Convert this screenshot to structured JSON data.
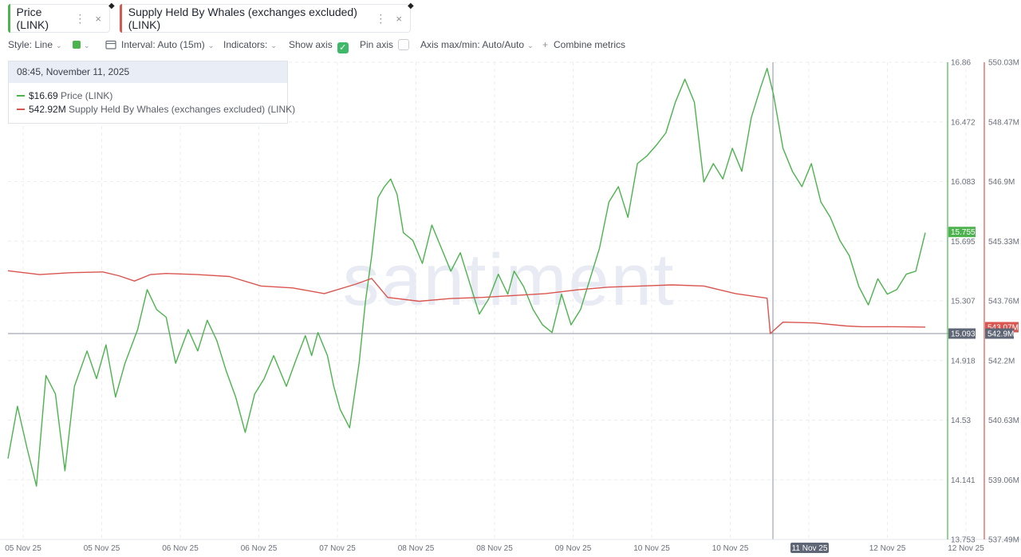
{
  "tabs": [
    {
      "label": "Price (LINK)",
      "color": "#4db34e"
    },
    {
      "label": "Supply Held By Whales (exchanges excluded) (LINK)",
      "color": "#d9554f"
    }
  ],
  "tab_menu_glyph": "⋮",
  "tab_close_glyph": "×",
  "toolbar": {
    "style": "Style: Line",
    "interval": "Interval: Auto (15m)",
    "indicators": "Indicators:",
    "show_axis": "Show axis",
    "pin_axis": "Pin axis",
    "axis_maxmin": "Axis max/min: Auto/Auto",
    "combine": "Combine metrics",
    "chevron": "⌄",
    "plus": "+",
    "check": "✓"
  },
  "tooltip": {
    "time": "08:45, November 11, 2025",
    "rows": [
      {
        "value": "$16.69",
        "label": "Price (LINK)",
        "color": "#4db34e"
      },
      {
        "value": "542.92M",
        "label": "Supply Held By Whales (exchanges excluded) (LINK)",
        "color": "#d9554f"
      }
    ]
  },
  "watermark": "santiment",
  "chart_data": {
    "type": "line",
    "x_ticks": [
      "05 Nov 25",
      "05 Nov 25",
      "06 Nov 25",
      "06 Nov 25",
      "07 Nov 25",
      "08 Nov 25",
      "08 Nov 25",
      "09 Nov 25",
      "10 Nov 25",
      "10 Nov 25",
      "11 Nov 25",
      "12 Nov 25",
      "12 Nov 25"
    ],
    "crosshair_x_label": "11 Nov 25",
    "y_axes": {
      "price": {
        "ylim": [
          13.753,
          16.86
        ],
        "ticks": [
          "16.86",
          "16.472",
          "16.083",
          "15.695",
          "15.307",
          "14.918",
          "14.53",
          "14.141",
          "13.753"
        ]
      },
      "supply": {
        "ylim": [
          537.49,
          550.03
        ],
        "ticks": [
          "550.03M",
          "548.47M",
          "546.9M",
          "545.33M",
          "543.76M",
          "542.2M",
          "540.63M",
          "539.06M",
          "537.49M"
        ]
      }
    },
    "badges": {
      "price_last": "15.755",
      "crosshair_price": "15.093",
      "supply_last": "543.07M",
      "supply_cross": "542.9M"
    },
    "series": [
      {
        "name": "Price (LINK)",
        "axis": "price",
        "color": "#4db34e",
        "points": [
          [
            0,
            14.28
          ],
          [
            0.3,
            14.62
          ],
          [
            0.6,
            14.35
          ],
          [
            0.9,
            14.1
          ],
          [
            1.2,
            14.82
          ],
          [
            1.5,
            14.7
          ],
          [
            1.8,
            14.2
          ],
          [
            2.1,
            14.75
          ],
          [
            2.5,
            14.98
          ],
          [
            2.8,
            14.8
          ],
          [
            3.1,
            15.02
          ],
          [
            3.4,
            14.68
          ],
          [
            3.7,
            14.9
          ],
          [
            4.1,
            15.12
          ],
          [
            4.4,
            15.38
          ],
          [
            4.7,
            15.25
          ],
          [
            5.0,
            15.2
          ],
          [
            5.3,
            14.9
          ],
          [
            5.7,
            15.12
          ],
          [
            6.0,
            14.98
          ],
          [
            6.3,
            15.18
          ],
          [
            6.6,
            15.05
          ],
          [
            6.9,
            14.85
          ],
          [
            7.2,
            14.68
          ],
          [
            7.5,
            14.45
          ],
          [
            7.8,
            14.7
          ],
          [
            8.1,
            14.8
          ],
          [
            8.4,
            14.95
          ],
          [
            8.8,
            14.75
          ],
          [
            9.1,
            14.92
          ],
          [
            9.4,
            15.08
          ],
          [
            9.6,
            14.95
          ],
          [
            9.8,
            15.1
          ],
          [
            10.1,
            14.95
          ],
          [
            10.3,
            14.75
          ],
          [
            10.5,
            14.6
          ],
          [
            10.8,
            14.48
          ],
          [
            11.1,
            14.9
          ],
          [
            11.3,
            15.3
          ],
          [
            11.5,
            15.6
          ],
          [
            11.7,
            15.98
          ],
          [
            11.9,
            16.05
          ],
          [
            12.1,
            16.1
          ],
          [
            12.3,
            16.0
          ],
          [
            12.5,
            15.75
          ],
          [
            12.8,
            15.7
          ],
          [
            13.1,
            15.55
          ],
          [
            13.4,
            15.8
          ],
          [
            13.7,
            15.65
          ],
          [
            14.0,
            15.5
          ],
          [
            14.3,
            15.62
          ],
          [
            14.6,
            15.42
          ],
          [
            14.9,
            15.22
          ],
          [
            15.2,
            15.32
          ],
          [
            15.5,
            15.48
          ],
          [
            15.8,
            15.35
          ],
          [
            16.0,
            15.5
          ],
          [
            16.3,
            15.4
          ],
          [
            16.6,
            15.25
          ],
          [
            16.9,
            15.15
          ],
          [
            17.2,
            15.1
          ],
          [
            17.5,
            15.35
          ],
          [
            17.8,
            15.15
          ],
          [
            18.1,
            15.25
          ],
          [
            18.4,
            15.45
          ],
          [
            18.7,
            15.65
          ],
          [
            19.0,
            15.95
          ],
          [
            19.3,
            16.05
          ],
          [
            19.6,
            15.85
          ],
          [
            19.9,
            16.2
          ],
          [
            20.2,
            16.25
          ],
          [
            20.5,
            16.32
          ],
          [
            20.8,
            16.4
          ],
          [
            21.1,
            16.6
          ],
          [
            21.4,
            16.75
          ],
          [
            21.7,
            16.6
          ],
          [
            22.0,
            16.08
          ],
          [
            22.3,
            16.2
          ],
          [
            22.6,
            16.1
          ],
          [
            22.9,
            16.3
          ],
          [
            23.2,
            16.15
          ],
          [
            23.5,
            16.5
          ],
          [
            23.8,
            16.7
          ],
          [
            24.0,
            16.82
          ],
          [
            24.2,
            16.65
          ],
          [
            24.5,
            16.3
          ],
          [
            24.8,
            16.15
          ],
          [
            25.1,
            16.05
          ],
          [
            25.4,
            16.2
          ],
          [
            25.7,
            15.95
          ],
          [
            26.0,
            15.85
          ],
          [
            26.3,
            15.7
          ],
          [
            26.6,
            15.6
          ],
          [
            26.9,
            15.4
          ],
          [
            27.2,
            15.28
          ],
          [
            27.5,
            15.45
          ],
          [
            27.8,
            15.35
          ],
          [
            28.1,
            15.38
          ],
          [
            28.4,
            15.48
          ],
          [
            28.7,
            15.5
          ],
          [
            29.0,
            15.75
          ]
        ]
      },
      {
        "name": "Supply Held By Whales (exchanges excluded) (LINK)",
        "axis": "supply",
        "color": "#d9554f",
        "points": [
          [
            0,
            544.55
          ],
          [
            1.0,
            544.45
          ],
          [
            2.0,
            544.5
          ],
          [
            3.0,
            544.52
          ],
          [
            3.5,
            544.42
          ],
          [
            4.0,
            544.28
          ],
          [
            4.5,
            544.45
          ],
          [
            5.0,
            544.48
          ],
          [
            6.0,
            544.45
          ],
          [
            7.0,
            544.4
          ],
          [
            8.0,
            544.15
          ],
          [
            9.0,
            544.1
          ],
          [
            10.0,
            543.95
          ],
          [
            11.0,
            544.2
          ],
          [
            11.5,
            544.35
          ],
          [
            12.0,
            543.85
          ],
          [
            13.0,
            543.75
          ],
          [
            14.0,
            543.82
          ],
          [
            15.0,
            543.85
          ],
          [
            16.0,
            543.9
          ],
          [
            17.0,
            543.95
          ],
          [
            18.0,
            544.05
          ],
          [
            19.0,
            544.12
          ],
          [
            20.0,
            544.15
          ],
          [
            21.0,
            544.18
          ],
          [
            22.0,
            544.15
          ],
          [
            22.5,
            544.05
          ],
          [
            23.0,
            543.95
          ],
          [
            24.0,
            543.83
          ],
          [
            24.1,
            542.9
          ],
          [
            24.5,
            543.2
          ],
          [
            25.5,
            543.18
          ],
          [
            26.5,
            543.1
          ],
          [
            27.0,
            543.08
          ],
          [
            28.0,
            543.08
          ],
          [
            29.0,
            543.07
          ]
        ]
      }
    ]
  }
}
